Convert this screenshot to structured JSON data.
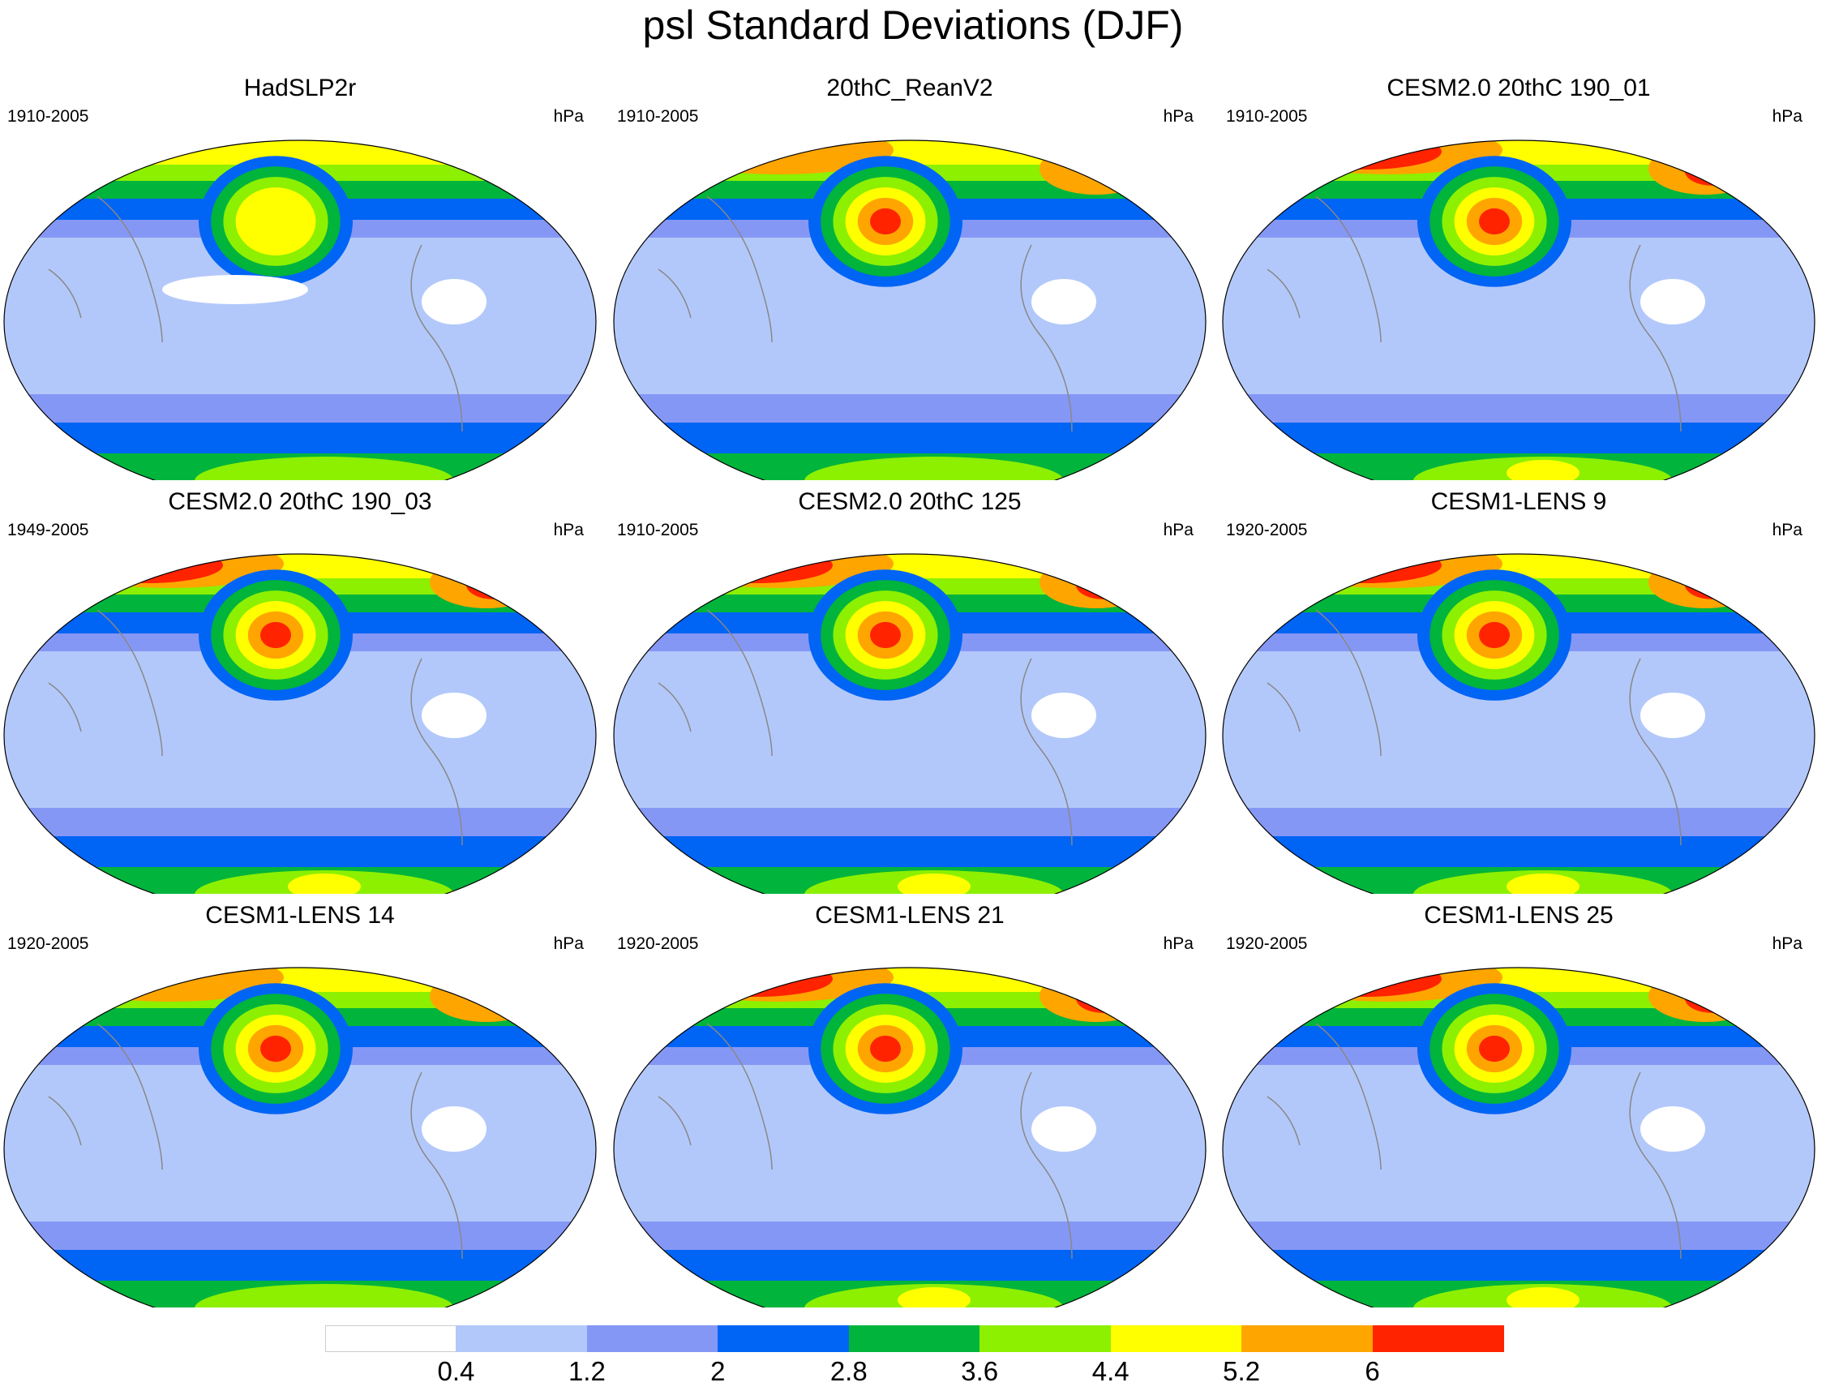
{
  "title": "psl Standard Deviations (DJF)",
  "units": "hPa",
  "panels": [
    {
      "title": "HadSLP2r",
      "period": "1910-2005",
      "intensity": 0.55
    },
    {
      "title": "20thC_ReanV2",
      "period": "1910-2005",
      "intensity": 0.8
    },
    {
      "title": "CESM2.0 20thC 190_01",
      "period": "1910-2005",
      "intensity": 1.0
    },
    {
      "title": "CESM2.0 20thC 190_03",
      "period": "1949-2005",
      "intensity": 1.0
    },
    {
      "title": "CESM2.0 20thC 125",
      "period": "1910-2005",
      "intensity": 0.95
    },
    {
      "title": "CESM1-LENS 9",
      "period": "1920-2005",
      "intensity": 0.9
    },
    {
      "title": "CESM1-LENS 14",
      "period": "1920-2005",
      "intensity": 0.85
    },
    {
      "title": "CESM1-LENS 21",
      "period": "1920-2005",
      "intensity": 0.95
    },
    {
      "title": "CESM1-LENS 25",
      "period": "1920-2005",
      "intensity": 0.9
    }
  ],
  "colorbar": {
    "colors": [
      "#ffffff",
      "#b3c8fa",
      "#8597f5",
      "#0064f5",
      "#00b43c",
      "#8cf000",
      "#ffff00",
      "#ffa500",
      "#ff2300"
    ],
    "labels": [
      "0.4",
      "1.2",
      "2",
      "2.8",
      "3.6",
      "4.4",
      "5.2",
      "6"
    ]
  },
  "chart_data": {
    "type": "heatmap",
    "variable": "psl",
    "season": "DJF",
    "units": "hPa",
    "contour_levels": [
      0.4,
      1.2,
      2,
      2.8,
      3.6,
      4.4,
      5.2,
      6
    ]
  }
}
